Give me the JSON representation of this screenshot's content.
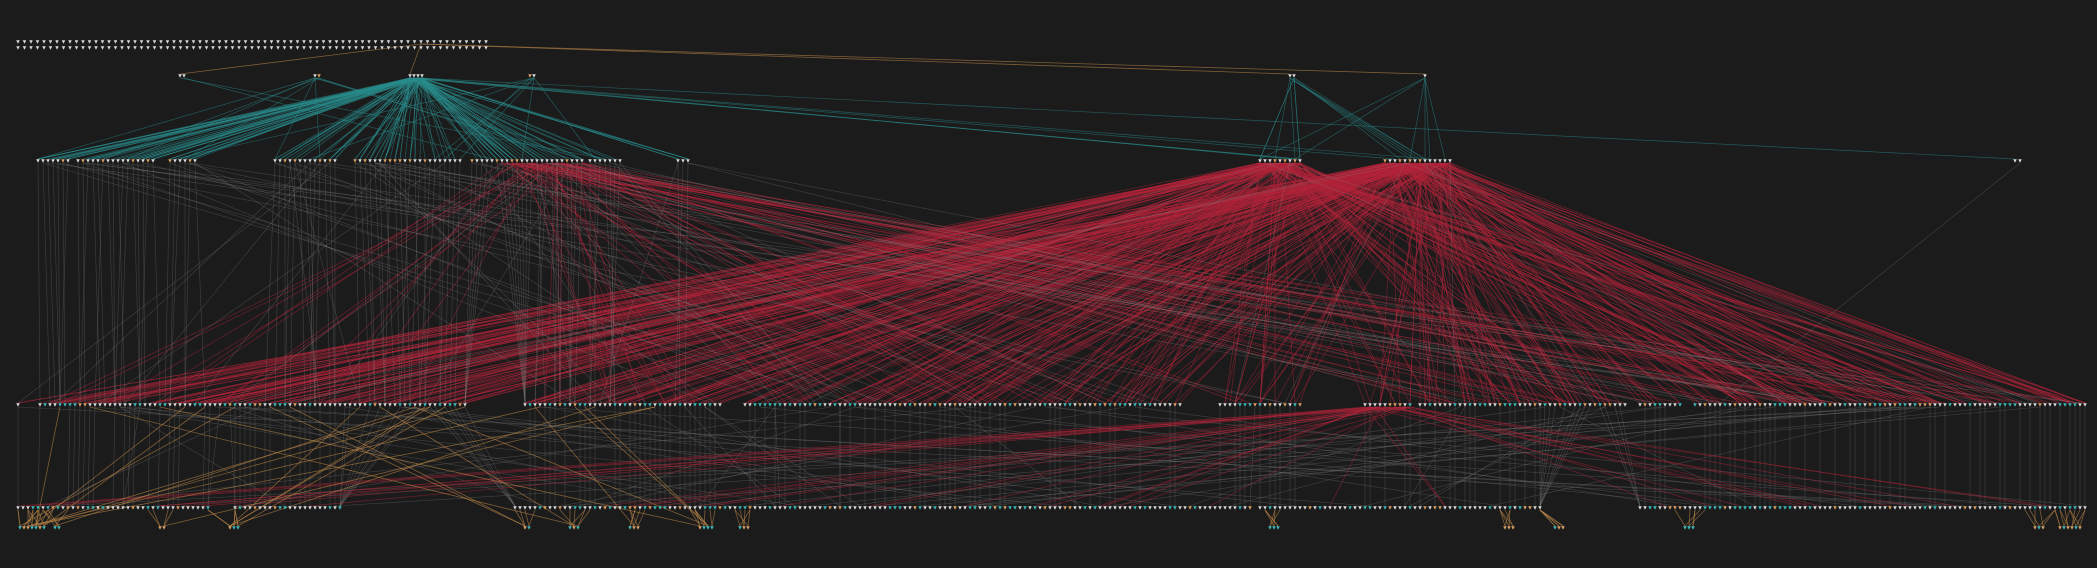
{
  "diagram": {
    "kind": "layered dependency graph",
    "labels_visible": false,
    "colors": {
      "background": "#1b1b1b",
      "node_default": "#d9d9d9",
      "node_accent": "#d9a066",
      "node_group": "#3fb9b9",
      "edge_teal": "#2a8c8c",
      "edge_red": "#b3243a",
      "edge_gray": "#8a8a8a",
      "edge_orange": "#c08a4a"
    },
    "layers": [
      {
        "name": "layer-0",
        "node_count": 150
      },
      {
        "name": "layer-1",
        "node_count": 11
      },
      {
        "name": "layer-2",
        "node_count": 110
      },
      {
        "name": "layer-3",
        "node_count": 420
      },
      {
        "name": "layer-4",
        "node_count": 320
      },
      {
        "name": "layer-5",
        "node_count": 30
      }
    ]
  }
}
